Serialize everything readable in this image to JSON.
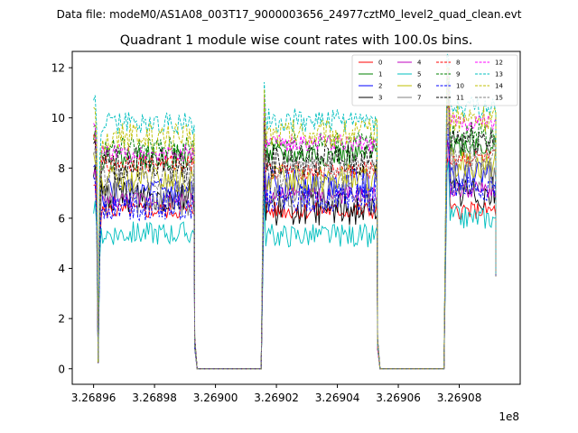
{
  "suptitle": "Data file: modeM0/AS1A08_003T17_9000003656_24977cztM0_level2_quad_clean.evt",
  "chart_data": {
    "type": "line",
    "title": "Quadrant 1 module wise count rates with 100.0s bins.",
    "xlabel": "",
    "ylabel": "",
    "x_offset_label": "1e8",
    "xlim": [
      3.268953,
      3.2691
    ],
    "ylim": [
      -0.62,
      12.65
    ],
    "xticks": [
      3.26896,
      3.26898,
      3.269,
      3.26902,
      3.26904,
      3.26906,
      3.26908
    ],
    "xtick_labels": [
      "3.26896",
      "3.26898",
      "3.26900",
      "3.26902",
      "3.26904",
      "3.26906",
      "3.26908"
    ],
    "yticks": [
      0,
      2,
      4,
      6,
      8,
      10,
      12
    ],
    "ytick_labels": [
      "0",
      "2",
      "4",
      "6",
      "8",
      "10",
      "12"
    ],
    "legend": {
      "location": "top-right",
      "ncol": 4
    },
    "segments": [
      {
        "x_start": 3.26896,
        "x_end": 3.268993,
        "dip_offset": 1e-06
      },
      {
        "x_start": 3.269016,
        "x_end": 3.269053,
        "dip_offset": 0
      },
      {
        "x_start": 3.269076,
        "x_end": 3.269092,
        "dip_offset": 0
      }
    ],
    "gaps": [
      {
        "x_start": 3.268994,
        "x_end": 3.269015,
        "value": 0
      },
      {
        "x_start": 3.269054,
        "x_end": 3.269075,
        "value": 0
      }
    ],
    "series": [
      {
        "name": "0",
        "color": "#ff0000",
        "dashed": false,
        "levels": [
          6.3,
          6.3,
          6.3
        ]
      },
      {
        "name": "1",
        "color": "#008000",
        "dashed": false,
        "levels": [
          8.4,
          8.5,
          8.9
        ]
      },
      {
        "name": "2",
        "color": "#0000ff",
        "dashed": false,
        "levels": [
          7.0,
          7.4,
          7.8
        ]
      },
      {
        "name": "3",
        "color": "#000000",
        "dashed": false,
        "levels": [
          6.9,
          6.4,
          7.0
        ]
      },
      {
        "name": "4",
        "color": "#bf00bf",
        "dashed": false,
        "levels": [
          6.7,
          6.9,
          7.1
        ]
      },
      {
        "name": "5",
        "color": "#00bfbf",
        "dashed": false,
        "levels": [
          5.4,
          5.3,
          6.0
        ]
      },
      {
        "name": "6",
        "color": "#bfbf00",
        "dashed": false,
        "levels": [
          7.5,
          7.6,
          8.2
        ]
      },
      {
        "name": "7",
        "color": "#808080",
        "dashed": false,
        "levels": [
          6.8,
          6.9,
          7.6
        ]
      },
      {
        "name": "8",
        "color": "#ff0000",
        "dashed": true,
        "levels": [
          8.2,
          7.9,
          8.4
        ]
      },
      {
        "name": "9",
        "color": "#008000",
        "dashed": true,
        "levels": [
          8.8,
          9.0,
          9.3
        ]
      },
      {
        "name": "10",
        "color": "#0000ff",
        "dashed": true,
        "levels": [
          6.5,
          6.8,
          7.2
        ]
      },
      {
        "name": "11",
        "color": "#000000",
        "dashed": true,
        "levels": [
          8.1,
          8.3,
          9.3
        ]
      },
      {
        "name": "12",
        "color": "#ff00ff",
        "dashed": true,
        "levels": [
          8.6,
          9.0,
          9.8
        ]
      },
      {
        "name": "13",
        "color": "#00bfbf",
        "dashed": true,
        "levels": [
          9.8,
          9.9,
          10.4
        ]
      },
      {
        "name": "14",
        "color": "#bfbf00",
        "dashed": true,
        "levels": [
          9.2,
          9.4,
          10.0
        ]
      },
      {
        "name": "15",
        "color": "#808080",
        "dashed": true,
        "levels": [
          7.6,
          7.9,
          8.6
        ]
      }
    ]
  }
}
